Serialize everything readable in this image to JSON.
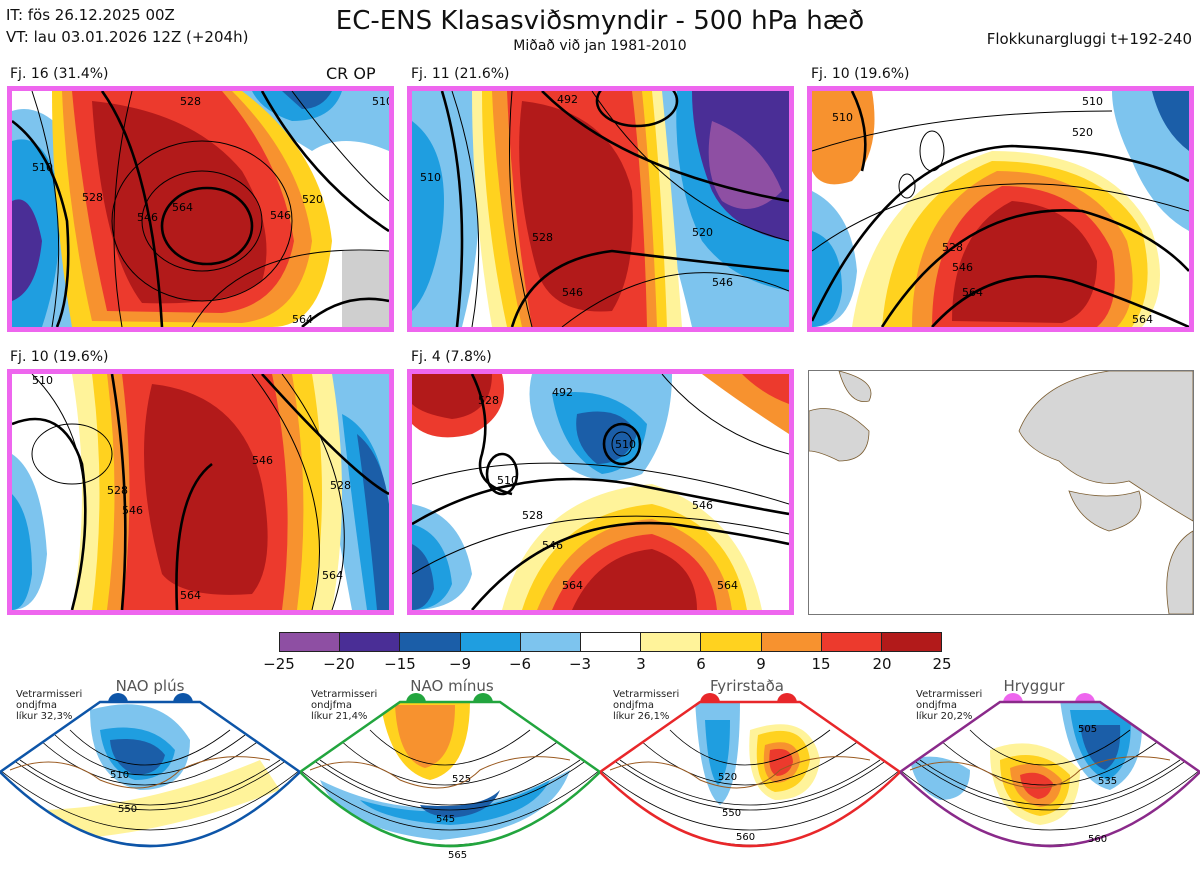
{
  "header": {
    "it_line": "IT: fös 26.12.2025 00Z",
    "vt_line": "VT: lau 03.01.2026 12Z  (+204h)",
    "title": "EC-ENS Klasasviðsmyndir - 500 hPa hæð",
    "subtitle": "Miðað við jan 1981-2010",
    "window": "Flokkunargluggi t+192-240"
  },
  "panels": [
    {
      "label": "Fj. 16 (31.4%)",
      "extra": "CR OP",
      "contours": [
        "510",
        "528",
        "546",
        "564",
        "546",
        "520",
        "528",
        "564",
        "510"
      ]
    },
    {
      "label": "Fj. 11 (21.6%)",
      "extra": "",
      "contours": [
        "510",
        "492",
        "528",
        "546",
        "520",
        "546"
      ]
    },
    {
      "label": "Fj. 10 (19.6%)",
      "extra": "",
      "contours": [
        "510",
        "528",
        "546",
        "564",
        "564",
        "510",
        "520"
      ]
    },
    {
      "label": "Fj. 10 (19.6%)",
      "extra": "",
      "contours": [
        "510",
        "528",
        "546",
        "564",
        "528",
        "546",
        "564"
      ]
    },
    {
      "label": "Fj. 4 (7.8%)",
      "extra": "",
      "contours": [
        "528",
        "492",
        "510",
        "510",
        "528",
        "546",
        "564",
        "546",
        "564"
      ]
    }
  ],
  "colorbar": {
    "colors": [
      "#8e4fa3",
      "#4a2e96",
      "#1b5ea8",
      "#1f9ee0",
      "#7dc4ee",
      "#ffffff",
      "#fff39a",
      "#ffd21f",
      "#f7922f",
      "#ec3a2d",
      "#b21a1a"
    ],
    "ticks": [
      "−25",
      "−20",
      "−15",
      "−9",
      "−6",
      "−3",
      "3",
      "6",
      "9",
      "15",
      "20",
      "25"
    ]
  },
  "regimes": [
    {
      "title": "NAO plús",
      "note": [
        "Vetrarmisseri",
        "ondjfma",
        "líkur 32,3%"
      ],
      "color": "#0d55a8",
      "contours": [
        "510",
        "550"
      ]
    },
    {
      "title": "NAO mínus",
      "note": [
        "Vetrarmisseri",
        "ondjfma",
        "líkur 21,4%"
      ],
      "color": "#22a53e",
      "contours": [
        "525",
        "545",
        "565"
      ]
    },
    {
      "title": "Fyrirstaða",
      "note": [
        "Vetrarmisseri",
        "ondjfma",
        "líkur 26,1%"
      ],
      "color": "#e8272a",
      "contours": [
        "520",
        "550",
        "560"
      ]
    },
    {
      "title": "Hryggur",
      "note": [
        "Vetrarmisseri",
        "ondjfma",
        "líkur 20,2%"
      ],
      "color": "#ee66ee",
      "outline": "#8a2a8a",
      "contours": [
        "505",
        "535",
        "560"
      ]
    }
  ]
}
